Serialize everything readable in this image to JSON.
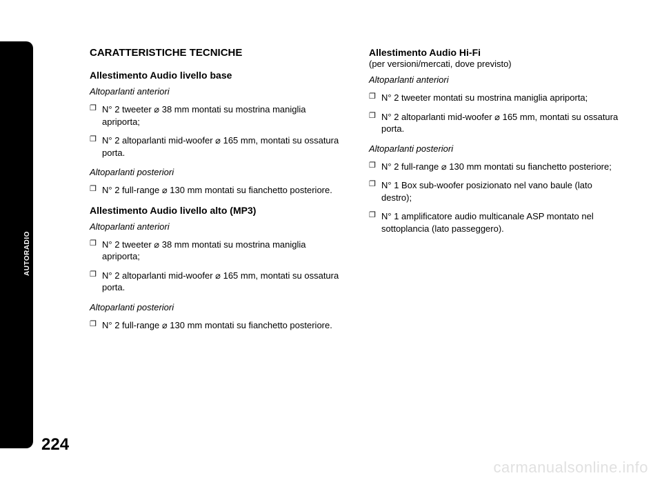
{
  "sidebar": {
    "tab_label": "AUTORADIO"
  },
  "page_number": "224",
  "watermark": "carmanualsonline.info",
  "left": {
    "title": "CARATTERISTICHE TECNICHE",
    "section1": {
      "heading": "Allestimento Audio livello base",
      "front_label": "Altoparlanti anteriori",
      "front_items": [
        "N° 2 tweeter ⌀ 38 mm montati su mostrina maniglia apriporta;",
        "N° 2 altoparlanti mid-woofer ⌀ 165 mm, montati su ossatura porta."
      ],
      "rear_label": "Altoparlanti posteriori",
      "rear_items": [
        "N° 2 full-range ⌀ 130 mm montati su fianchetto posteriore."
      ]
    },
    "section2": {
      "heading": "Allestimento Audio livello alto (MP3)",
      "front_label": "Altoparlanti anteriori",
      "front_items": [
        "N° 2 tweeter ⌀ 38 mm montati su mostrina maniglia apriporta;",
        "N° 2 altoparlanti mid-woofer ⌀ 165 mm, montati su ossatura porta."
      ],
      "rear_label": "Altoparlanti posteriori",
      "rear_items": [
        "N° 2 full-range ⌀ 130 mm montati su fianchetto posteriore."
      ]
    }
  },
  "right": {
    "heading": "Allestimento Audio Hi-Fi",
    "subheading": "(per versioni/mercati, dove previsto)",
    "front_label": "Altoparlanti anteriori",
    "front_items": [
      "N° 2 tweeter montati su mostrina maniglia apriporta;",
      "N° 2 altoparlanti mid-woofer ⌀ 165 mm, montati su ossatura porta."
    ],
    "rear_label": "Altoparlanti posteriori",
    "rear_items": [
      "N° 2 full-range ⌀ 130 mm montati su fianchetto posteriore;",
      "N° 1 Box sub-woofer posizionato nel vano baule (lato destro);",
      "N° 1 amplificatore audio multicanale ASP montato nel sottoplancia (lato passeggero)."
    ]
  }
}
